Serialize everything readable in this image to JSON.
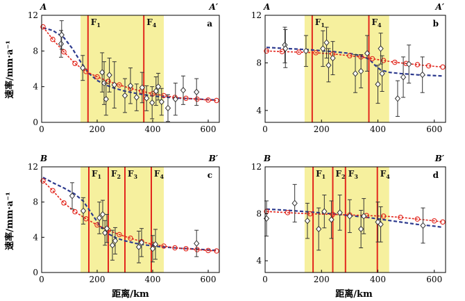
{
  "axis_labels": {
    "y": "速率/mm·a⁻¹",
    "x": "距离/km"
  },
  "chart_data": [
    {
      "panel": "a",
      "type": "scatter",
      "corner_left": "A",
      "corner_right": "A′",
      "xlim": [
        0,
        640
      ],
      "ylim": [
        0,
        12
      ],
      "xticks": [
        0,
        200,
        400,
        600
      ],
      "yticks": [
        0,
        4,
        8,
        12
      ],
      "highlight_band": [
        140,
        440
      ],
      "faults": [
        {
          "label": "F",
          "sub": "1",
          "x": 167
        },
        {
          "label": "F",
          "sub": "4",
          "x": 368
        }
      ],
      "points": [
        {
          "x": 70,
          "y": 8.8,
          "err": 1.5
        },
        {
          "x": 72,
          "y": 9.8,
          "err": 1.6
        },
        {
          "x": 148,
          "y": 6.1,
          "err": 1.4
        },
        {
          "x": 218,
          "y": 5.6,
          "err": 2.2
        },
        {
          "x": 225,
          "y": 4.4,
          "err": 2.4
        },
        {
          "x": 232,
          "y": 2.6,
          "err": 1.8
        },
        {
          "x": 244,
          "y": 5.3,
          "err": 1.9
        },
        {
          "x": 262,
          "y": 4.2,
          "err": 2.6
        },
        {
          "x": 300,
          "y": 3.0,
          "err": 1.9
        },
        {
          "x": 320,
          "y": 4.1,
          "err": 2.0
        },
        {
          "x": 342,
          "y": 2.8,
          "err": 1.5
        },
        {
          "x": 362,
          "y": 3.9,
          "err": 1.7
        },
        {
          "x": 378,
          "y": 2.7,
          "err": 1.4
        },
        {
          "x": 398,
          "y": 2.2,
          "err": 1.8
        },
        {
          "x": 412,
          "y": 3.5,
          "err": 1.6
        },
        {
          "x": 420,
          "y": 4.0,
          "err": 1.5
        },
        {
          "x": 432,
          "y": 2.3,
          "err": 1.5
        },
        {
          "x": 455,
          "y": 1.6,
          "err": 1.5
        },
        {
          "x": 482,
          "y": 2.6,
          "err": 1.8
        },
        {
          "x": 510,
          "y": 3.6,
          "err": 1.6
        },
        {
          "x": 558,
          "y": 3.4,
          "err": 1.5
        }
      ],
      "fit_red": [
        [
          5,
          10.7
        ],
        [
          40,
          9.3
        ],
        [
          80,
          7.9
        ],
        [
          120,
          6.6
        ],
        [
          160,
          5.7
        ],
        [
          200,
          5.1
        ],
        [
          240,
          4.6
        ],
        [
          280,
          4.2
        ],
        [
          320,
          3.8
        ],
        [
          360,
          3.5
        ],
        [
          400,
          3.2
        ],
        [
          440,
          3.0
        ],
        [
          480,
          2.8
        ],
        [
          520,
          2.7
        ],
        [
          560,
          2.6
        ],
        [
          600,
          2.5
        ],
        [
          630,
          2.45
        ]
      ],
      "fit_blue": [
        [
          5,
          10.6
        ],
        [
          40,
          10.3
        ],
        [
          80,
          9.5
        ],
        [
          110,
          8.3
        ],
        [
          140,
          6.8
        ],
        [
          170,
          5.5
        ],
        [
          200,
          4.7
        ],
        [
          230,
          4.2
        ],
        [
          260,
          3.85
        ],
        [
          300,
          3.5
        ],
        [
          340,
          3.25
        ],
        [
          380,
          3.05
        ],
        [
          420,
          2.9
        ],
        [
          460,
          2.8
        ],
        [
          500,
          2.7
        ],
        [
          540,
          2.65
        ],
        [
          600,
          2.55
        ],
        [
          630,
          2.5
        ]
      ]
    },
    {
      "panel": "b",
      "type": "scatter",
      "corner_left": "A",
      "corner_right": "A′",
      "xlim": [
        0,
        640
      ],
      "ylim": [
        3,
        12
      ],
      "xticks": [
        0,
        200,
        400,
        600
      ],
      "yticks": [
        4,
        8,
        12
      ],
      "highlight_band": [
        140,
        440
      ],
      "faults": [
        {
          "label": "F",
          "sub": "1",
          "x": 167
        },
        {
          "label": "F",
          "sub": "4",
          "x": 368
        }
      ],
      "points": [
        {
          "x": 70,
          "y": 9.5,
          "err": 1.5
        },
        {
          "x": 72,
          "y": 9.2,
          "err": 1.6
        },
        {
          "x": 145,
          "y": 9.0,
          "err": 1.3
        },
        {
          "x": 205,
          "y": 9.2,
          "err": 1.5
        },
        {
          "x": 218,
          "y": 9.7,
          "err": 1.3
        },
        {
          "x": 225,
          "y": 7.8,
          "err": 1.4
        },
        {
          "x": 240,
          "y": 8.4,
          "err": 1.4
        },
        {
          "x": 320,
          "y": 7.1,
          "err": 1.6
        },
        {
          "x": 340,
          "y": 7.3,
          "err": 1.4
        },
        {
          "x": 362,
          "y": 8.8,
          "err": 1.5
        },
        {
          "x": 400,
          "y": 6.2,
          "err": 1.6
        },
        {
          "x": 410,
          "y": 9.2,
          "err": 1.3
        },
        {
          "x": 415,
          "y": 7.1,
          "err": 1.5
        },
        {
          "x": 470,
          "y": 5.0,
          "err": 1.5
        },
        {
          "x": 490,
          "y": 6.8,
          "err": 1.7
        },
        {
          "x": 510,
          "y": 7.9,
          "err": 1.6
        },
        {
          "x": 558,
          "y": 7.0,
          "err": 1.5
        }
      ],
      "fit_red": [
        [
          5,
          9.0
        ],
        [
          60,
          8.95
        ],
        [
          120,
          8.9
        ],
        [
          180,
          8.85
        ],
        [
          240,
          8.75
        ],
        [
          300,
          8.6
        ],
        [
          340,
          8.5
        ],
        [
          380,
          8.35
        ],
        [
          420,
          8.2
        ],
        [
          460,
          8.05
        ],
        [
          500,
          7.95
        ],
        [
          540,
          7.85
        ],
        [
          580,
          7.75
        ],
        [
          630,
          7.65
        ]
      ],
      "fit_blue": [
        [
          5,
          9.3
        ],
        [
          80,
          9.2
        ],
        [
          160,
          9.1
        ],
        [
          240,
          8.95
        ],
        [
          300,
          8.8
        ],
        [
          340,
          8.6
        ],
        [
          370,
          8.3
        ],
        [
          390,
          7.8
        ],
        [
          410,
          7.4
        ],
        [
          440,
          7.2
        ],
        [
          480,
          7.1
        ],
        [
          540,
          7.0
        ],
        [
          630,
          6.9
        ]
      ]
    },
    {
      "panel": "c",
      "type": "scatter",
      "corner_left": "B",
      "corner_right": "B′",
      "xlim": [
        0,
        640
      ],
      "ylim": [
        0,
        12
      ],
      "xticks": [
        0,
        200,
        400,
        600
      ],
      "yticks": [
        0,
        4,
        8,
        12
      ],
      "highlight_band": [
        140,
        440
      ],
      "faults": [
        {
          "label": "F",
          "sub": "1",
          "x": 170
        },
        {
          "label": "F",
          "sub": "2",
          "x": 240
        },
        {
          "label": "F",
          "sub": "3",
          "x": 300
        },
        {
          "label": "F",
          "sub": "4",
          "x": 395
        }
      ],
      "points": [
        {
          "x": 110,
          "y": 8.7,
          "err": 1.5
        },
        {
          "x": 150,
          "y": 7.0,
          "err": 1.5
        },
        {
          "x": 208,
          "y": 6.2,
          "err": 1.8
        },
        {
          "x": 220,
          "y": 6.6,
          "err": 1.6
        },
        {
          "x": 228,
          "y": 4.5,
          "err": 1.4
        },
        {
          "x": 235,
          "y": 5.0,
          "err": 1.6
        },
        {
          "x": 255,
          "y": 3.1,
          "err": 1.7
        },
        {
          "x": 265,
          "y": 3.6,
          "err": 1.5
        },
        {
          "x": 350,
          "y": 2.9,
          "err": 1.8
        },
        {
          "x": 360,
          "y": 3.4,
          "err": 1.6
        },
        {
          "x": 400,
          "y": 2.7,
          "err": 1.5
        },
        {
          "x": 410,
          "y": 3.2,
          "err": 1.7
        },
        {
          "x": 558,
          "y": 3.3,
          "err": 1.5
        }
      ],
      "fit_red": [
        [
          5,
          10.4
        ],
        [
          40,
          9.3
        ],
        [
          80,
          7.9
        ],
        [
          120,
          6.9
        ],
        [
          160,
          6.1
        ],
        [
          200,
          5.4
        ],
        [
          240,
          4.8
        ],
        [
          280,
          4.3
        ],
        [
          320,
          3.9
        ],
        [
          360,
          3.5
        ],
        [
          400,
          3.2
        ],
        [
          440,
          3.0
        ],
        [
          480,
          2.8
        ],
        [
          520,
          2.7
        ],
        [
          560,
          2.6
        ],
        [
          600,
          2.5
        ],
        [
          630,
          2.45
        ]
      ],
      "fit_blue": [
        [
          5,
          10.8
        ],
        [
          40,
          10.2
        ],
        [
          80,
          9.6
        ],
        [
          120,
          8.9
        ],
        [
          150,
          8.1
        ],
        [
          180,
          6.7
        ],
        [
          210,
          5.3
        ],
        [
          240,
          4.4
        ],
        [
          270,
          3.9
        ],
        [
          300,
          3.6
        ],
        [
          340,
          3.3
        ],
        [
          380,
          3.1
        ],
        [
          420,
          2.95
        ],
        [
          460,
          2.85
        ],
        [
          500,
          2.75
        ],
        [
          560,
          2.65
        ],
        [
          630,
          2.5
        ]
      ]
    },
    {
      "panel": "d",
      "type": "scatter",
      "corner_left": "B",
      "corner_right": "B′",
      "xlim": [
        0,
        640
      ],
      "ylim": [
        3,
        12
      ],
      "xticks": [
        0,
        200,
        400,
        600
      ],
      "yticks": [
        4,
        8,
        12
      ],
      "highlight_band": [
        140,
        440
      ],
      "faults": [
        {
          "label": "F",
          "sub": "1",
          "x": 170
        },
        {
          "label": "F",
          "sub": "2",
          "x": 240
        },
        {
          "label": "F",
          "sub": "3",
          "x": 285
        },
        {
          "label": "F",
          "sub": "4",
          "x": 398
        }
      ],
      "points": [
        {
          "x": 5,
          "y": 7.6,
          "err": 1.5
        },
        {
          "x": 105,
          "y": 8.9,
          "err": 1.6
        },
        {
          "x": 150,
          "y": 7.4,
          "err": 1.5
        },
        {
          "x": 190,
          "y": 6.7,
          "err": 1.8
        },
        {
          "x": 210,
          "y": 8.2,
          "err": 1.4
        },
        {
          "x": 235,
          "y": 7.5,
          "err": 1.6
        },
        {
          "x": 265,
          "y": 8.1,
          "err": 1.5
        },
        {
          "x": 300,
          "y": 7.8,
          "err": 1.4
        },
        {
          "x": 340,
          "y": 6.7,
          "err": 1.6
        },
        {
          "x": 350,
          "y": 7.8,
          "err": 1.5
        },
        {
          "x": 400,
          "y": 7.3,
          "err": 1.7
        },
        {
          "x": 410,
          "y": 7.1,
          "err": 1.5
        },
        {
          "x": 560,
          "y": 7.0,
          "err": 1.5
        }
      ],
      "fit_red": [
        [
          5,
          8.2
        ],
        [
          80,
          8.1
        ],
        [
          160,
          8.0
        ],
        [
          240,
          7.95
        ],
        [
          300,
          7.9
        ],
        [
          360,
          7.85
        ],
        [
          420,
          7.8
        ],
        [
          480,
          7.7
        ],
        [
          540,
          7.55
        ],
        [
          600,
          7.4
        ],
        [
          630,
          7.3
        ]
      ],
      "fit_blue": [
        [
          5,
          8.4
        ],
        [
          80,
          8.3
        ],
        [
          160,
          8.15
        ],
        [
          240,
          8.0
        ],
        [
          300,
          7.85
        ],
        [
          360,
          7.7
        ],
        [
          420,
          7.5
        ],
        [
          480,
          7.3
        ],
        [
          540,
          7.1
        ],
        [
          600,
          6.95
        ],
        [
          630,
          6.85
        ]
      ]
    }
  ]
}
